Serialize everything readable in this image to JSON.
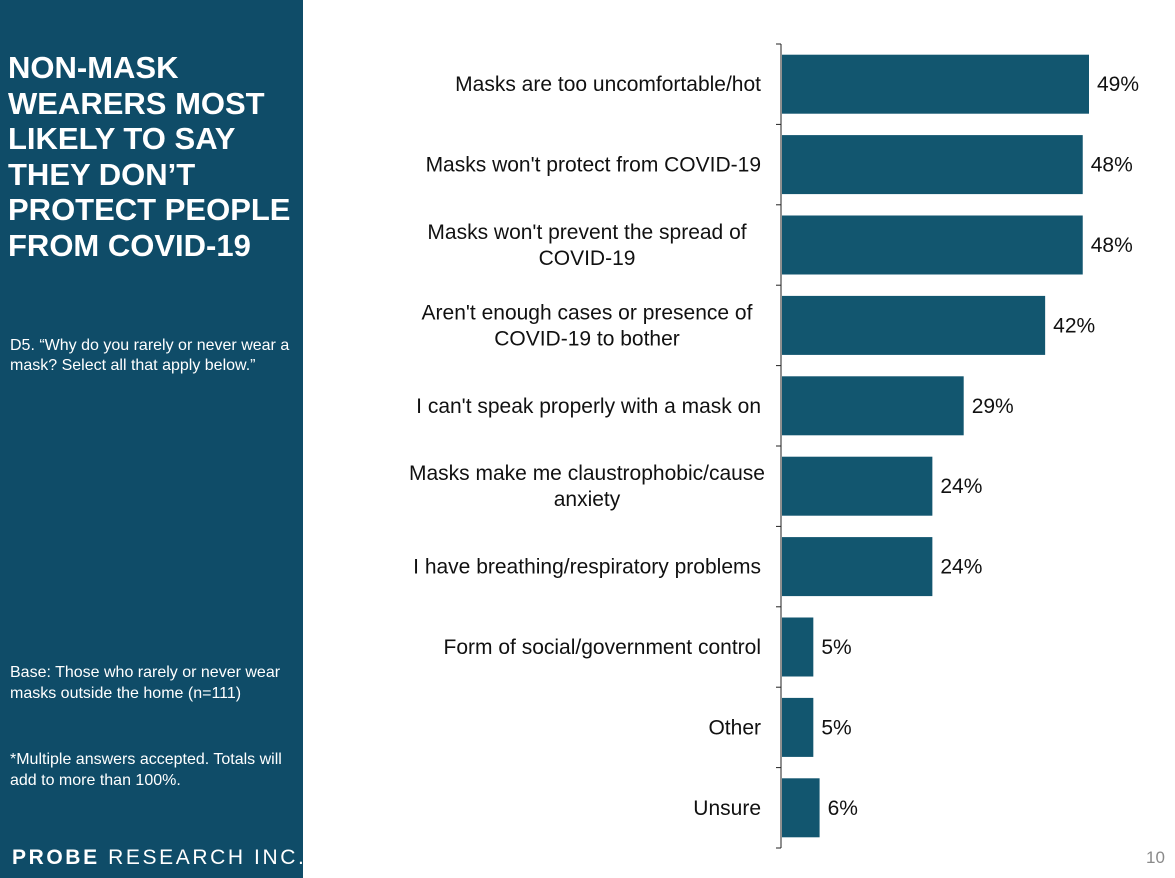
{
  "sidebar": {
    "title": "NON-MASK WEARERS MOST LIKELY TO SAY THEY DON’T PROTECT PEOPLE FROM COVID-19",
    "question": "D5. “Why do you rarely or never wear a mask? Select all that apply below.”",
    "base": "Base: Those who rarely or never wear masks outside the home (n=111)",
    "note": "*Multiple answers accepted. Totals will add to more than 100%.",
    "logo_bold": "PROBE",
    "logo_rest": " RESEARCH INC.",
    "background_color": "#0f4c68"
  },
  "page_number": "10",
  "chart_data": {
    "type": "bar",
    "orientation": "horizontal",
    "categories": [
      [
        "Masks are too uncomfortable/hot"
      ],
      [
        "Masks won't protect from COVID-19"
      ],
      [
        "Masks won't prevent the spread of",
        "COVID-19"
      ],
      [
        "Aren't enough cases or presence of",
        "COVID-19 to bother"
      ],
      [
        "I can't speak properly with a mask on"
      ],
      [
        "Masks make me claustrophobic/cause",
        "anxiety"
      ],
      [
        "I have breathing/respiratory problems"
      ],
      [
        "Form of social/government control"
      ],
      [
        "Other"
      ],
      [
        "Unsure"
      ]
    ],
    "values": [
      49,
      48,
      48,
      42,
      29,
      24,
      24,
      5,
      5,
      6
    ],
    "value_labels": [
      "49%",
      "48%",
      "48%",
      "42%",
      "29%",
      "24%",
      "24%",
      "5%",
      "5%",
      "6%"
    ],
    "xlim": [
      0,
      55
    ],
    "bar_color": "#12566f",
    "grid": false,
    "legend": "none"
  }
}
